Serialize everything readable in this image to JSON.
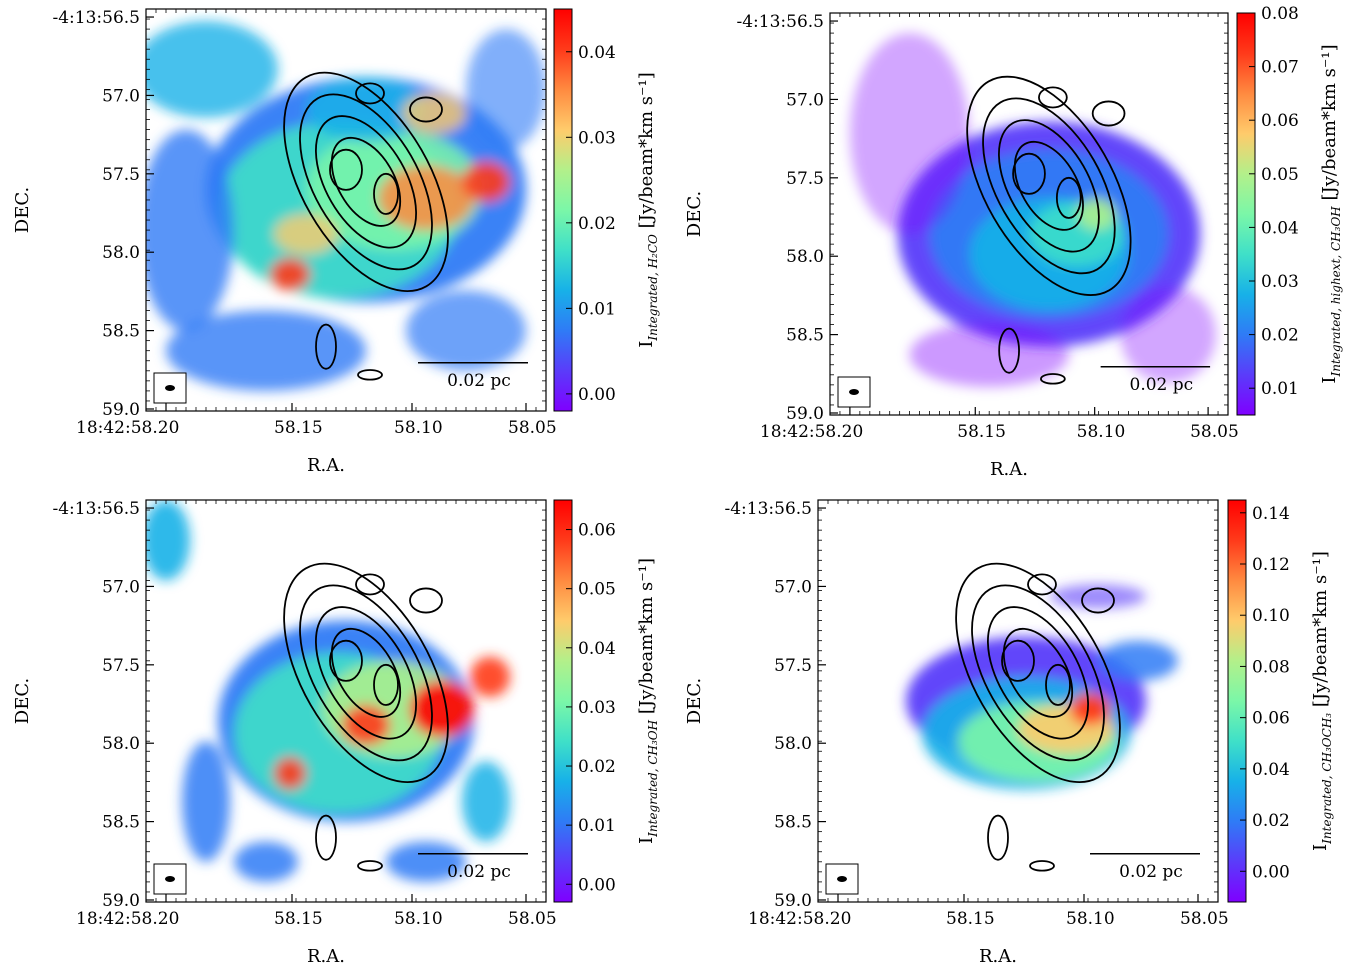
{
  "colors": {
    "cmap": [
      "#7f00ff",
      "#5a3cfa",
      "#2f7bf6",
      "#17b1e8",
      "#3fe0c8",
      "#7bf7a8",
      "#b3f08a",
      "#ffcb6b",
      "#ff8a40",
      "#ff3a1a",
      "#ff0000"
    ],
    "contour": "#000000",
    "frame": "#000000"
  },
  "chart_data": [
    {
      "type": "heatmap",
      "panel": "top-left",
      "xlabel": "R.A.",
      "ylabel": "DEC.",
      "x_ticks": [
        "18:42:58.20",
        "58.15",
        "58.10",
        "58.05"
      ],
      "y_ticks": [
        "-4:13:56.5",
        "57.0",
        "57.5",
        "58.0",
        "58.5",
        "59.0"
      ],
      "colorbar": {
        "label_main": "I",
        "label_sub": "Integrated, H₂CO",
        "label_unit": " [Jy/beam*km s⁻¹]",
        "range": [
          -0.002,
          0.045
        ],
        "ticks": [
          "0.00",
          "0.01",
          "0.02",
          "0.03",
          "0.04"
        ],
        "tick_values": [
          0.0,
          0.01,
          0.02,
          0.03,
          0.04
        ]
      },
      "scalebar": "0.02 pc"
    },
    {
      "type": "heatmap",
      "panel": "top-right",
      "xlabel": "R.A.",
      "ylabel": "DEC.",
      "x_ticks": [
        "18:42:58.20",
        "58.15",
        "58.10",
        "58.05"
      ],
      "y_ticks": [
        "-4:13:56.5",
        "57.0",
        "57.5",
        "58.0",
        "58.5",
        "59.0"
      ],
      "colorbar": {
        "label_main": "I",
        "label_sub": "Integrated, highext, CH₃OH",
        "label_unit": " [Jy/beam*km s⁻¹]",
        "range": [
          0.005,
          0.08
        ],
        "ticks": [
          "0.01",
          "0.02",
          "0.03",
          "0.04",
          "0.05",
          "0.06",
          "0.07",
          "0.08"
        ],
        "tick_values": [
          0.01,
          0.02,
          0.03,
          0.04,
          0.05,
          0.06,
          0.07,
          0.08
        ]
      },
      "scalebar": "0.02 pc"
    },
    {
      "type": "heatmap",
      "panel": "bottom-left",
      "xlabel": "R.A.",
      "ylabel": "DEC.",
      "x_ticks": [
        "18:42:58.20",
        "58.15",
        "58.10",
        "58.05"
      ],
      "y_ticks": [
        "-4:13:56.5",
        "57.0",
        "57.5",
        "58.0",
        "58.5",
        "59.0"
      ],
      "colorbar": {
        "label_main": "I",
        "label_sub": "Integrated, CH₃OH",
        "label_unit": " [Jy/beam*km s⁻¹]",
        "range": [
          -0.003,
          0.065
        ],
        "ticks": [
          "0.00",
          "0.01",
          "0.02",
          "0.03",
          "0.04",
          "0.05",
          "0.06"
        ],
        "tick_values": [
          0.0,
          0.01,
          0.02,
          0.03,
          0.04,
          0.05,
          0.06
        ]
      },
      "scalebar": "0.02 pc"
    },
    {
      "type": "heatmap",
      "panel": "bottom-right",
      "xlabel": "R.A.",
      "ylabel": "DEC.",
      "x_ticks": [
        "18:42:58.20",
        "58.15",
        "58.10",
        "58.05"
      ],
      "y_ticks": [
        "-4:13:56.5",
        "57.0",
        "57.5",
        "58.0",
        "58.5",
        "59.0"
      ],
      "colorbar": {
        "label_main": "I",
        "label_sub": "Integrated, CH₃OCH₃",
        "label_unit": " [Jy/beam*km s⁻¹]",
        "range": [
          -0.012,
          0.145
        ],
        "ticks": [
          "0.00",
          "0.02",
          "0.04",
          "0.06",
          "0.08",
          "0.10",
          "0.12",
          "0.14"
        ],
        "tick_values": [
          0.0,
          0.02,
          0.04,
          0.06,
          0.08,
          0.1,
          0.12,
          0.14
        ]
      },
      "scalebar": "0.02 pc"
    }
  ]
}
